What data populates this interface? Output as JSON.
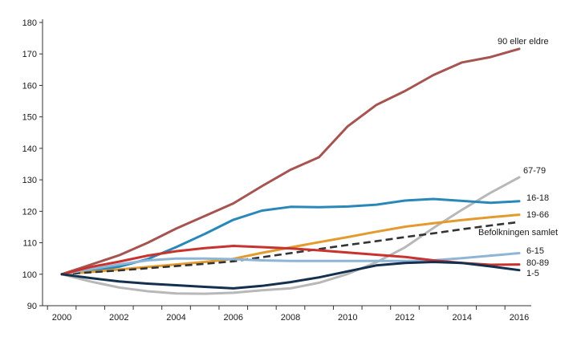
{
  "chart_data": {
    "type": "line",
    "title": "",
    "xlabel": "",
    "ylabel": "",
    "x": [
      2000,
      2001,
      2002,
      2003,
      2004,
      2005,
      2006,
      2007,
      2008,
      2009,
      2010,
      2011,
      2012,
      2013,
      2014,
      2015,
      2016
    ],
    "x_ticks": [
      2000,
      2002,
      2004,
      2006,
      2008,
      2010,
      2012,
      2014,
      2016
    ],
    "y_ticks": [
      90,
      100,
      110,
      120,
      130,
      140,
      150,
      160,
      170,
      180
    ],
    "ylim": [
      90,
      180
    ],
    "xlim": [
      2000,
      2016
    ],
    "grid": false,
    "legend": "inline labels at line ends",
    "series": [
      {
        "name": "90 eller eldre",
        "color": "#a65450",
        "width": 3,
        "dash": false,
        "values": [
          100,
          103,
          106,
          110,
          114.5,
          118.5,
          122.5,
          128,
          133.2,
          137.2,
          147,
          153.8,
          158.2,
          163.3,
          167.3,
          169,
          171.6
        ]
      },
      {
        "name": "67-79",
        "color": "#b8b8b8",
        "width": 3,
        "dash": false,
        "values": [
          100,
          97.7,
          95.8,
          94.6,
          93.9,
          93.8,
          94.1,
          94.9,
          95.5,
          97.3,
          100.1,
          103.8,
          108.5,
          114.7,
          120.5,
          125.9,
          130.8
        ]
      },
      {
        "name": "16-18",
        "color": "#2a88b8",
        "width": 3,
        "dash": false,
        "values": [
          100,
          101,
          102.4,
          104.8,
          108.6,
          112.8,
          117.3,
          120.2,
          121.4,
          121.3,
          121.5,
          122.1,
          123.4,
          123.9,
          123.3,
          122.7,
          123.2
        ]
      },
      {
        "name": "19-66",
        "color": "#e39a2f",
        "width": 3,
        "dash": false,
        "values": [
          100,
          100.7,
          101.5,
          102.3,
          103.1,
          103.9,
          104.9,
          106.8,
          108.5,
          110.2,
          111.8,
          113.5,
          115.1,
          116.2,
          117.2,
          118.1,
          118.9
        ]
      },
      {
        "name": "Befolkningen samlet",
        "color": "#333333",
        "width": 2.6,
        "dash": true,
        "values": [
          100,
          100.6,
          101.2,
          101.9,
          102.6,
          103.3,
          104.1,
          105.4,
          106.7,
          108,
          109.3,
          110.5,
          111.8,
          113,
          114.3,
          115.5,
          116.6
        ]
      },
      {
        "name": "6-15",
        "color": "#8fb5d6",
        "width": 3,
        "dash": false,
        "values": [
          100,
          101.6,
          103.1,
          104.4,
          105,
          105,
          104.8,
          104.4,
          104.2,
          104.2,
          104.2,
          104.2,
          104.2,
          104.4,
          105.1,
          105.9,
          106.7
        ]
      },
      {
        "name": "80-89",
        "color": "#c8322f",
        "width": 3,
        "dash": false,
        "values": [
          100,
          102.3,
          104,
          105.9,
          107.3,
          108.3,
          109,
          108.6,
          108.2,
          107.6,
          106.9,
          106.2,
          105.5,
          104.4,
          103.6,
          103,
          103.1
        ]
      },
      {
        "name": "1-5",
        "color": "#14304f",
        "width": 3,
        "dash": false,
        "values": [
          100,
          98.8,
          97.7,
          97,
          96.5,
          96,
          95.5,
          96.3,
          97.5,
          99,
          100.9,
          102.8,
          103.6,
          103.9,
          103.6,
          102.5,
          101.3
        ]
      }
    ]
  }
}
